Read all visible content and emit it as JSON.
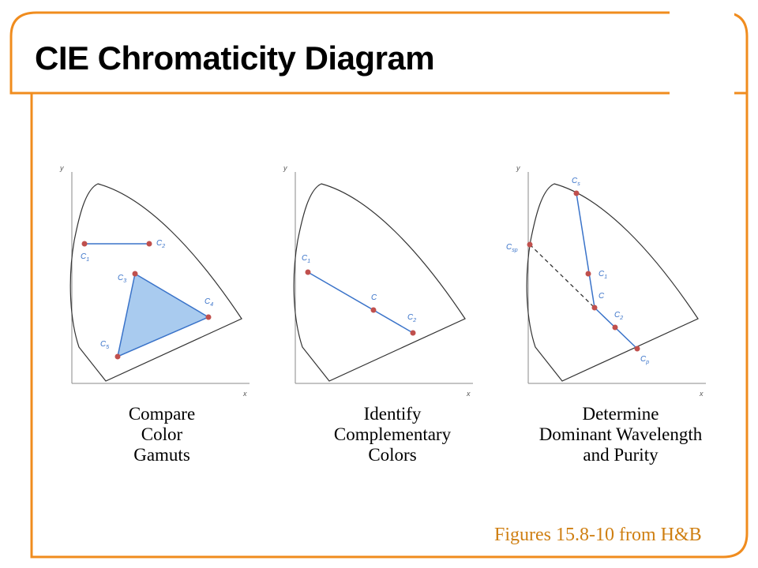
{
  "slide": {
    "title": "CIE Chromaticity Diagram",
    "credit": "Figures 15.8-10 from H&B",
    "accent_color": "#f08c1e",
    "credit_color": "#cf7f12"
  },
  "axes": {
    "x_label": "x",
    "y_label": "y"
  },
  "panels": [
    {
      "caption": [
        "Compare",
        "Color",
        "Gamuts"
      ],
      "labels": {
        "c1": "C",
        "c1_sub": "1",
        "c2": "C",
        "c2_sub": "2",
        "c3": "C",
        "c3_sub": "3",
        "c4": "C",
        "c4_sub": "4",
        "c5": "C",
        "c5_sub": "5"
      }
    },
    {
      "caption": [
        "Identify",
        "Complementary",
        "Colors"
      ],
      "labels": {
        "c1": "C",
        "c1_sub": "1",
        "c": "C",
        "c2": "C",
        "c2_sub": "2"
      }
    },
    {
      "caption": [
        "Determine",
        "Dominant Wavelength",
        "and Purity"
      ],
      "labels": {
        "cs": "C",
        "cs_sub": "s",
        "csp": "C",
        "csp_sub": "sp",
        "c1": "C",
        "c1_sub": "1",
        "c": "C",
        "c2": "C",
        "c2_sub": "2",
        "cp": "C",
        "cp_sub": "p"
      }
    }
  ]
}
